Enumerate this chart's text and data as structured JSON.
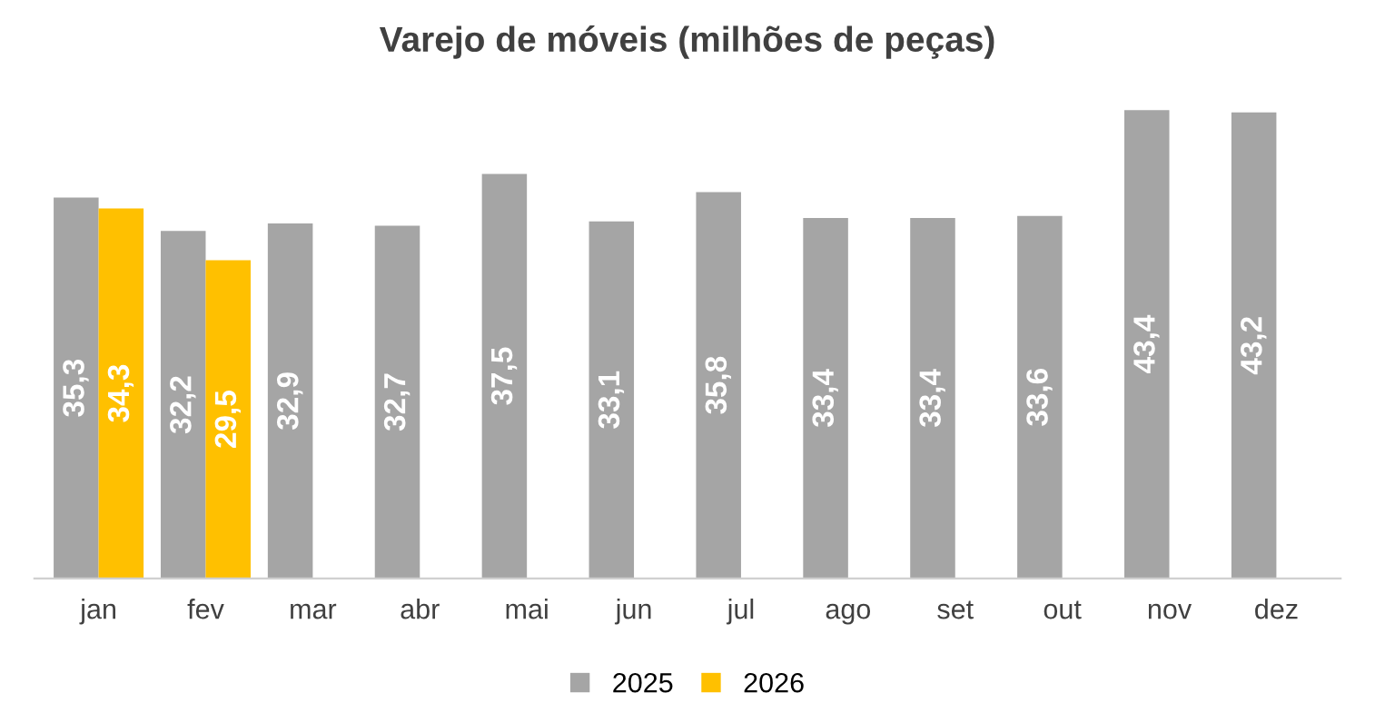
{
  "chart_data": {
    "type": "bar",
    "title": "Varejo de móveis (milhões de peças)",
    "categories": [
      "jan",
      "fev",
      "mar",
      "abr",
      "mai",
      "jun",
      "jul",
      "ago",
      "set",
      "out",
      "nov",
      "dez"
    ],
    "series": [
      {
        "name": "2025",
        "color": "#a5a5a5",
        "values": [
          35.3,
          32.2,
          32.9,
          32.7,
          37.5,
          33.1,
          35.8,
          33.4,
          33.4,
          33.6,
          43.4,
          43.2
        ],
        "value_labels": [
          "35,3",
          "32,2",
          "32,9",
          "32,7",
          "37,5",
          "33,1",
          "35,8",
          "33,4",
          "33,4",
          "33,6",
          "43,4",
          "43,2"
        ]
      },
      {
        "name": "2026",
        "color": "#ffc000",
        "values": [
          34.3,
          29.5,
          null,
          null,
          null,
          null,
          null,
          null,
          null,
          null,
          null,
          null
        ],
        "value_labels": [
          "34,3",
          "29,5",
          null,
          null,
          null,
          null,
          null,
          null,
          null,
          null,
          null,
          null
        ]
      }
    ],
    "legend": "bottom",
    "grid": false
  }
}
